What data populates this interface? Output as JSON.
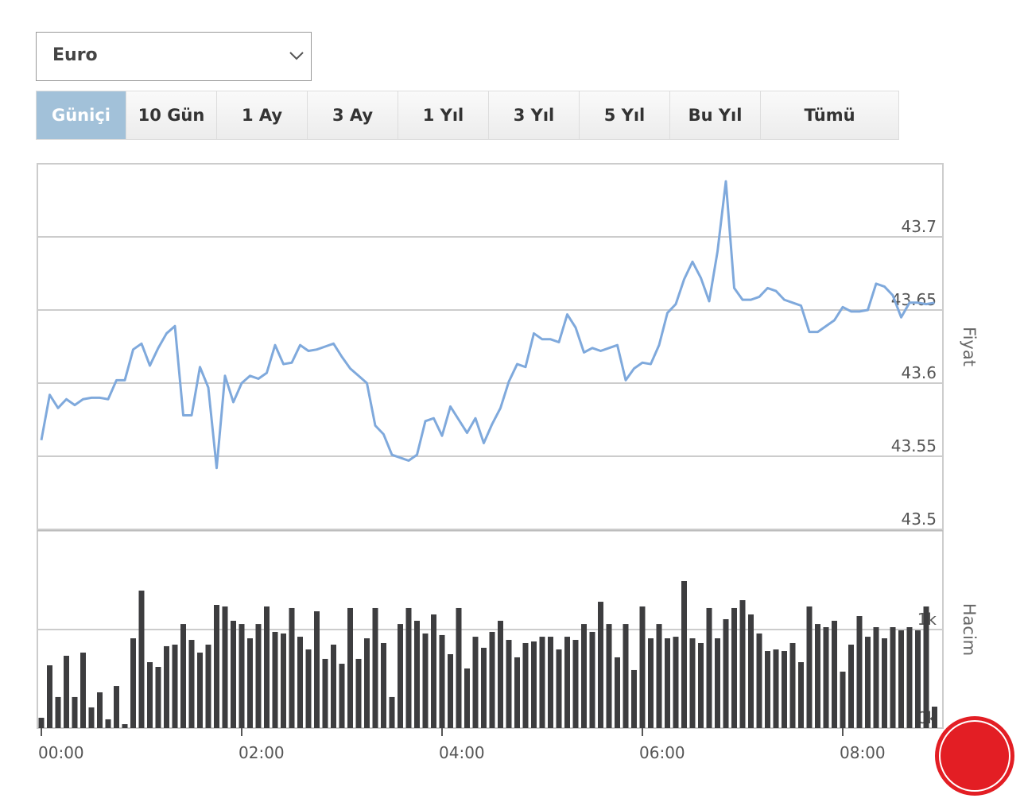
{
  "dropdown": {
    "selected": "Euro"
  },
  "range_buttons": [
    "Güniçi",
    "10 Gün",
    "1 Ay",
    "3 Ay",
    "1 Yıl",
    "3 Yıl",
    "5 Yıl",
    "Bu Yıl",
    "Tümü"
  ],
  "chart_data": [
    {
      "type": "line",
      "y_label": "Fiyat",
      "color": "#7fa9dc",
      "grid": true,
      "x": [
        "00:00",
        "00:05",
        "00:10",
        "00:15",
        "00:20",
        "00:25",
        "00:30",
        "00:35",
        "00:40",
        "00:45",
        "00:50",
        "00:55",
        "01:00",
        "01:05",
        "01:10",
        "01:15",
        "01:20",
        "01:25",
        "01:30",
        "01:35",
        "01:40",
        "01:45",
        "01:50",
        "01:55",
        "02:00",
        "02:05",
        "02:10",
        "02:15",
        "02:20",
        "02:25",
        "02:30",
        "02:35",
        "02:40",
        "02:45",
        "02:50",
        "02:55",
        "03:00",
        "03:05",
        "03:10",
        "03:15",
        "03:20",
        "03:25",
        "03:30",
        "03:35",
        "03:40",
        "03:45",
        "03:50",
        "03:55",
        "04:00",
        "04:05",
        "04:10",
        "04:15",
        "04:20",
        "04:25",
        "04:30",
        "04:35",
        "04:40",
        "04:45",
        "04:50",
        "04:55",
        "05:00",
        "05:05",
        "05:10",
        "05:15",
        "05:20",
        "05:25",
        "05:30",
        "05:35",
        "05:40",
        "05:45",
        "05:50",
        "05:55",
        "06:00",
        "06:05",
        "06:10",
        "06:15",
        "06:20",
        "06:25",
        "06:30",
        "06:35",
        "06:40",
        "06:45",
        "06:50",
        "06:55",
        "07:00",
        "07:05",
        "07:10",
        "07:15",
        "07:20",
        "07:25",
        "07:30",
        "07:35",
        "07:40",
        "07:45",
        "07:50",
        "07:55",
        "08:00",
        "08:05",
        "08:10",
        "08:15",
        "08:20",
        "08:25",
        "08:30",
        "08:35",
        "08:40",
        "08:45",
        "08:50",
        "08:55"
      ],
      "values": [
        43.561,
        43.592,
        43.583,
        43.589,
        43.585,
        43.589,
        43.59,
        43.59,
        43.589,
        43.602,
        43.602,
        43.623,
        43.627,
        43.612,
        43.624,
        43.634,
        43.639,
        43.578,
        43.578,
        43.611,
        43.597,
        43.542,
        43.605,
        43.587,
        43.6,
        43.605,
        43.603,
        43.607,
        43.626,
        43.613,
        43.614,
        43.626,
        43.622,
        43.623,
        43.625,
        43.627,
        43.618,
        43.61,
        43.605,
        43.6,
        43.571,
        43.565,
        43.551,
        43.549,
        43.547,
        43.551,
        43.574,
        43.576,
        43.564,
        43.584,
        43.575,
        43.566,
        43.576,
        43.559,
        43.572,
        43.583,
        43.601,
        43.613,
        43.611,
        43.634,
        43.63,
        43.63,
        43.628,
        43.647,
        43.638,
        43.621,
        43.624,
        43.622,
        43.624,
        43.626,
        43.602,
        43.61,
        43.614,
        43.613,
        43.626,
        43.648,
        43.654,
        43.671,
        43.683,
        43.672,
        43.656,
        43.69,
        43.738,
        43.665,
        43.657,
        43.657,
        43.659,
        43.665,
        43.663,
        43.657,
        43.655,
        43.653,
        43.635,
        43.635,
        43.639,
        43.643,
        43.652,
        43.649,
        43.649,
        43.65,
        43.668,
        43.666,
        43.66,
        43.645,
        43.655,
        43.655,
        43.654,
        43.655
      ],
      "xlim": [
        "00:00",
        "09:00"
      ],
      "ylim": [
        43.5,
        43.75
      ],
      "yticks": [
        43.5,
        43.55,
        43.6,
        43.65,
        43.7
      ]
    },
    {
      "type": "bar",
      "y_label": "Hacim",
      "color": "#3d3d3f",
      "grid": true,
      "x": [
        "00:00",
        "00:05",
        "00:10",
        "00:15",
        "00:20",
        "00:25",
        "00:30",
        "00:35",
        "00:40",
        "00:45",
        "00:50",
        "00:55",
        "01:00",
        "01:05",
        "01:10",
        "01:15",
        "01:20",
        "01:25",
        "01:30",
        "01:35",
        "01:40",
        "01:45",
        "01:50",
        "01:55",
        "02:00",
        "02:05",
        "02:10",
        "02:15",
        "02:20",
        "02:25",
        "02:30",
        "02:35",
        "02:40",
        "02:45",
        "02:50",
        "02:55",
        "03:00",
        "03:05",
        "03:10",
        "03:15",
        "03:20",
        "03:25",
        "03:30",
        "03:35",
        "03:40",
        "03:45",
        "03:50",
        "03:55",
        "04:00",
        "04:05",
        "04:10",
        "04:15",
        "04:20",
        "04:25",
        "04:30",
        "04:35",
        "04:40",
        "04:45",
        "04:50",
        "04:55",
        "05:00",
        "05:05",
        "05:10",
        "05:15",
        "05:20",
        "05:25",
        "05:30",
        "05:35",
        "05:40",
        "05:45",
        "05:50",
        "05:55",
        "06:00",
        "06:05",
        "06:10",
        "06:15",
        "06:20",
        "06:25",
        "06:30",
        "06:35",
        "06:40",
        "06:45",
        "06:50",
        "06:55",
        "07:00",
        "07:05",
        "07:10",
        "07:15",
        "07:20",
        "07:25",
        "07:30",
        "07:35",
        "07:40",
        "07:45",
        "07:50",
        "07:55",
        "08:00",
        "08:05",
        "08:10",
        "08:15",
        "08:20",
        "08:25",
        "08:30",
        "08:35",
        "08:40",
        "08:45",
        "08:50",
        "08:55"
      ],
      "values": [
        105,
        637,
        315,
        734,
        315,
        766,
        210,
        363,
        89,
        427,
        40,
        911,
        1395,
        669,
        621,
        831,
        847,
        1056,
        895,
        766,
        847,
        1250,
        1234,
        1089,
        1056,
        911,
        1056,
        1234,
        976,
        960,
        1218,
        927,
        798,
        1185,
        702,
        847,
        653,
        1218,
        702,
        911,
        1218,
        863,
        315,
        1056,
        1218,
        1089,
        960,
        1153,
        944,
        750,
        1218,
        605,
        927,
        815,
        976,
        1089,
        895,
        718,
        863,
        879,
        927,
        927,
        798,
        927,
        895,
        1056,
        976,
        1282,
        1056,
        718,
        1056,
        589,
        1234,
        911,
        1056,
        911,
        927,
        1492,
        911,
        863,
        1218,
        911,
        1105,
        1218,
        1298,
        1153,
        960,
        782,
        798,
        782,
        863,
        669,
        1234,
        1056,
        1024,
        1089,
        573,
        847,
        1137,
        927,
        1024,
        911,
        1024,
        992,
        1024,
        992,
        1234,
        218
      ],
      "xlim": [
        "00:00",
        "09:00"
      ],
      "xticks": [
        "00:00",
        "02:00",
        "04:00",
        "06:00",
        "08:00"
      ],
      "ylim": [
        0,
        2000
      ],
      "yticks": [
        {
          "value": 0,
          "label": "0k"
        },
        {
          "value": 1000,
          "label": "1k"
        }
      ]
    }
  ]
}
